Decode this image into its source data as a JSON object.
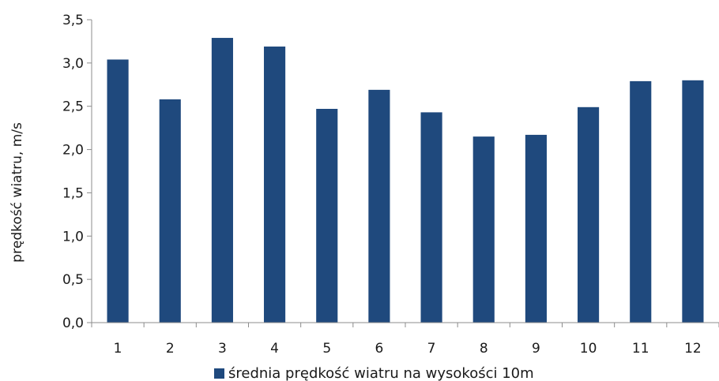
{
  "chart_data": {
    "type": "bar",
    "title": "",
    "xlabel": "",
    "ylabel": "prędkość wiatru, m/s",
    "categories": [
      "1",
      "2",
      "3",
      "4",
      "5",
      "6",
      "7",
      "8",
      "9",
      "10",
      "11",
      "12"
    ],
    "series": [
      {
        "name": "średnia prędkość wiatru na wysokości 10m",
        "color": "#1F497D",
        "values": [
          3.04,
          2.58,
          3.29,
          3.19,
          2.47,
          2.69,
          2.43,
          2.15,
          2.17,
          2.49,
          2.79,
          2.8
        ]
      }
    ],
    "ylim": [
      0,
      3.5
    ],
    "yticks": [
      "0,0",
      "0,5",
      "1,0",
      "1,5",
      "2,0",
      "2,5",
      "3,0",
      "3,5"
    ],
    "grid": false,
    "legend_position": "bottom"
  }
}
